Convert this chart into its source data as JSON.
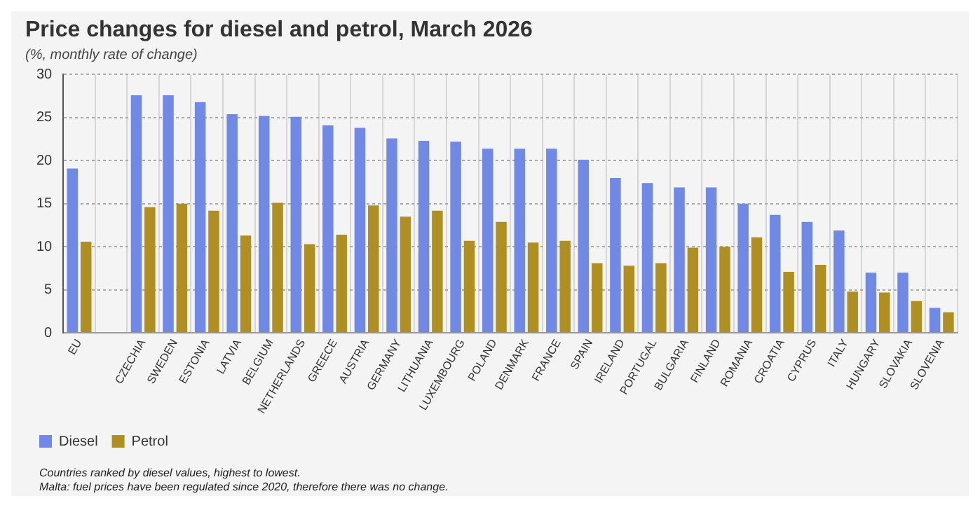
{
  "chart_data": {
    "type": "bar",
    "title": "Price changes for diesel and petrol, March 2026",
    "subtitle": "(%, monthly rate of change)",
    "categories": [
      "EU",
      null,
      "CZECHIA",
      "SWEDEN",
      "ESTONIA",
      "LATVIA",
      "BELGIUM",
      "NETHERLANDS",
      "GREECE",
      "AUSTRIA",
      "GERMANY",
      "LITHUANIA",
      "LUXEMBOURG",
      "POLAND",
      "DENMARK",
      "FRANCE",
      "SPAIN",
      "IRELAND",
      "PORTUGAL",
      "BULGARIA",
      "FINLAND",
      "ROMANIA",
      "CROATIA",
      "CYPRUS",
      "ITALY",
      "HUNGARY",
      "SLOVAKIA",
      "SLOVENIA"
    ],
    "series": [
      {
        "name": "Diesel",
        "color": "#7088e6",
        "values": [
          19.1,
          null,
          27.6,
          27.6,
          26.8,
          25.4,
          25.2,
          25.1,
          24.1,
          23.8,
          22.6,
          22.3,
          22.2,
          21.4,
          21.4,
          21.4,
          20.1,
          18.0,
          17.4,
          16.9,
          16.9,
          15.0,
          13.7,
          12.9,
          11.9,
          7.0,
          7.0,
          2.9
        ]
      },
      {
        "name": "Petrol",
        "color": "#b08f22",
        "values": [
          10.6,
          null,
          14.6,
          15.0,
          14.2,
          11.3,
          15.1,
          10.3,
          11.4,
          14.8,
          13.5,
          14.2,
          10.7,
          12.9,
          10.5,
          10.7,
          8.1,
          7.8,
          8.1,
          9.9,
          10.0,
          11.1,
          7.1,
          7.9,
          4.8,
          4.7,
          3.7,
          2.4
        ]
      }
    ],
    "ylim": [
      0,
      30
    ],
    "yticks": [
      0,
      5,
      10,
      15,
      20,
      25,
      30
    ],
    "grid": true,
    "legend": "bottom left",
    "annotations": [
      "Countries ranked by diesel values, highest to lowest.",
      "Malta: fuel prices have been regulated since 2020, therefore there was no change."
    ]
  }
}
